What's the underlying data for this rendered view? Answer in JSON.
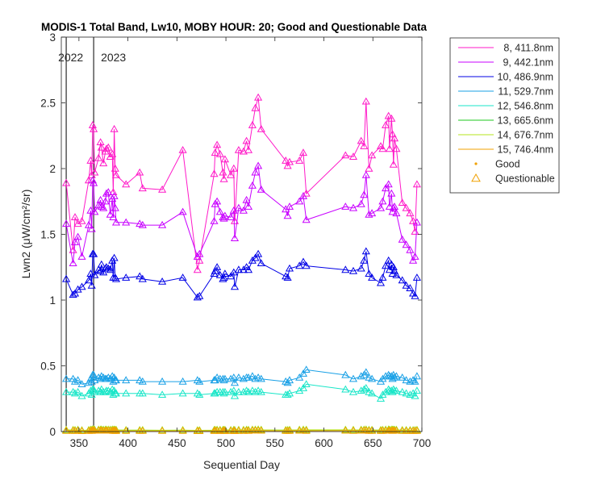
{
  "chart_data": {
    "type": "line",
    "title": "MODIS-1 Total Band, Lw10, MOBY HOUR: 20;  Good and Questionable Data",
    "xlabel": "Sequential Day",
    "ylabel": "Lwn2 (μW/cm²/sr)",
    "xlim": [
      332,
      700
    ],
    "ylim": [
      0,
      3
    ],
    "xticks": [
      350,
      400,
      450,
      500,
      550,
      600,
      650,
      700
    ],
    "yticks": [
      0,
      0.5,
      1,
      1.5,
      2,
      2.5,
      3
    ],
    "grid": false,
    "legend_position": "outside-top-right",
    "year_markers": [
      {
        "x": 337,
        "label": "2022"
      },
      {
        "x": 365,
        "label": "2023"
      }
    ],
    "x": [
      337,
      344,
      346,
      349,
      353,
      360,
      362,
      363,
      364,
      365,
      366,
      370,
      372,
      373,
      375,
      377,
      378,
      380,
      382,
      384,
      385,
      386,
      387,
      388,
      398,
      412,
      415,
      435,
      456,
      471,
      473,
      488,
      489,
      491,
      494,
      497,
      498,
      499,
      505,
      508,
      509,
      513,
      518,
      521,
      523,
      527,
      530,
      533,
      536,
      561,
      563,
      565,
      575,
      579,
      582,
      622,
      630,
      638,
      641,
      643,
      646,
      649,
      658,
      660,
      663,
      666,
      667,
      669,
      670,
      671,
      672,
      674,
      680,
      684,
      688,
      691,
      693,
      695
    ],
    "series": [
      {
        "name": "8, 411.8nm",
        "color": "#ff19c8",
        "values": [
          1.89,
          1.38,
          1.63,
          1.58,
          1.6,
          1.91,
          2.06,
          1.95,
          2.33,
          2.3,
          1.97,
          2.08,
          2.2,
          2.16,
          2.04,
          2.13,
          2.15,
          2.16,
          2.09,
          2.11,
          1.82,
          2.3,
          2.0,
          1.95,
          1.88,
          1.97,
          1.85,
          1.84,
          2.14,
          1.23,
          1.3,
          1.96,
          2.12,
          2.18,
          2.11,
          1.97,
          1.92,
          2.07,
          1.95,
          2.0,
          1.6,
          2.14,
          2.13,
          2.21,
          2.14,
          2.33,
          2.46,
          2.54,
          2.3,
          2.06,
          2.02,
          2.05,
          2.06,
          2.12,
          1.81,
          2.1,
          2.09,
          2.21,
          2.17,
          2.51,
          2.0,
          2.1,
          2.17,
          2.15,
          2.33,
          2.4,
          2.15,
          2.38,
          2.26,
          2.03,
          2.23,
          2.15,
          1.74,
          1.7,
          1.66,
          1.6,
          1.52,
          1.88
        ]
      },
      {
        "name": "9, 442.1nm",
        "color": "#c800ff",
        "values": [
          1.58,
          1.28,
          1.44,
          1.48,
          1.33,
          1.57,
          1.68,
          1.54,
          1.91,
          1.89,
          1.67,
          1.72,
          1.76,
          1.71,
          1.7,
          1.75,
          1.81,
          1.82,
          1.65,
          1.77,
          1.63,
          1.79,
          1.7,
          1.59,
          1.59,
          1.58,
          1.57,
          1.57,
          1.67,
          1.33,
          1.35,
          1.6,
          1.73,
          1.75,
          1.67,
          1.63,
          1.62,
          1.64,
          1.63,
          1.68,
          1.47,
          1.7,
          1.68,
          1.76,
          1.71,
          1.87,
          1.97,
          2.02,
          1.84,
          1.69,
          1.64,
          1.71,
          1.75,
          1.79,
          1.61,
          1.71,
          1.7,
          1.73,
          1.8,
          1.95,
          1.65,
          1.66,
          1.7,
          1.75,
          1.85,
          1.88,
          1.71,
          1.81,
          1.67,
          1.7,
          1.71,
          1.66,
          1.46,
          1.42,
          1.38,
          1.3,
          1.33,
          1.59
        ]
      },
      {
        "name": "10, 486.9nm",
        "color": "#0000e6",
        "values": [
          1.16,
          1.04,
          1.05,
          1.08,
          1.1,
          1.15,
          1.2,
          1.11,
          1.35,
          1.35,
          1.19,
          1.23,
          1.22,
          1.27,
          1.21,
          1.24,
          1.25,
          1.24,
          1.23,
          1.3,
          1.17,
          1.32,
          1.17,
          1.16,
          1.17,
          1.18,
          1.16,
          1.14,
          1.17,
          1.02,
          1.03,
          1.2,
          1.22,
          1.25,
          1.19,
          1.16,
          1.17,
          1.2,
          1.18,
          1.21,
          1.1,
          1.23,
          1.23,
          1.25,
          1.23,
          1.3,
          1.32,
          1.35,
          1.28,
          1.18,
          1.17,
          1.24,
          1.26,
          1.29,
          1.26,
          1.23,
          1.22,
          1.24,
          1.3,
          1.37,
          1.2,
          1.17,
          1.13,
          1.17,
          1.26,
          1.3,
          1.23,
          1.27,
          1.2,
          1.25,
          1.22,
          1.19,
          1.15,
          1.11,
          1.09,
          1.05,
          1.03,
          1.17
        ]
      },
      {
        "name": "11, 529.7nm",
        "color": "#19a0e6",
        "values": [
          0.4,
          0.4,
          0.38,
          0.39,
          0.36,
          0.37,
          0.4,
          0.38,
          0.43,
          0.43,
          0.39,
          0.41,
          0.4,
          0.42,
          0.41,
          0.4,
          0.4,
          0.41,
          0.4,
          0.42,
          0.38,
          0.41,
          0.39,
          0.39,
          0.39,
          0.39,
          0.38,
          0.38,
          0.38,
          0.39,
          0.38,
          0.39,
          0.39,
          0.41,
          0.4,
          0.4,
          0.39,
          0.4,
          0.4,
          0.41,
          0.37,
          0.41,
          0.4,
          0.41,
          0.41,
          0.42,
          0.4,
          0.41,
          0.4,
          0.38,
          0.37,
          0.39,
          0.41,
          0.44,
          0.47,
          0.43,
          0.4,
          0.42,
          0.43,
          0.45,
          0.41,
          0.4,
          0.38,
          0.4,
          0.42,
          0.43,
          0.42,
          0.42,
          0.4,
          0.43,
          0.41,
          0.42,
          0.41,
          0.39,
          0.38,
          0.39,
          0.38,
          0.42
        ]
      },
      {
        "name": "12, 546.8nm",
        "color": "#19e6c8",
        "values": [
          0.3,
          0.3,
          0.29,
          0.3,
          0.27,
          0.29,
          0.31,
          0.28,
          0.32,
          0.32,
          0.3,
          0.31,
          0.3,
          0.32,
          0.3,
          0.3,
          0.31,
          0.31,
          0.3,
          0.32,
          0.28,
          0.31,
          0.29,
          0.29,
          0.29,
          0.29,
          0.29,
          0.28,
          0.29,
          0.29,
          0.28,
          0.29,
          0.29,
          0.3,
          0.3,
          0.3,
          0.29,
          0.3,
          0.3,
          0.31,
          0.27,
          0.3,
          0.3,
          0.31,
          0.3,
          0.31,
          0.3,
          0.31,
          0.3,
          0.28,
          0.28,
          0.29,
          0.31,
          0.33,
          0.36,
          0.32,
          0.3,
          0.31,
          0.32,
          0.33,
          0.3,
          0.29,
          0.25,
          0.28,
          0.3,
          0.32,
          0.31,
          0.31,
          0.3,
          0.32,
          0.31,
          0.31,
          0.3,
          0.29,
          0.28,
          0.29,
          0.27,
          0.31
        ]
      },
      {
        "name": "13, 665.6nm",
        "color": "#1ec81e",
        "values": [
          0.01,
          0.01,
          0.01,
          0.012,
          0.008,
          0.01,
          0.012,
          0.01,
          0.015,
          0.015,
          0.012,
          0.013,
          0.012,
          0.014,
          0.012,
          0.012,
          0.013,
          0.013,
          0.012,
          0.014,
          0.01,
          0.013,
          0.011,
          0.011,
          0.01,
          0.01,
          0.01,
          0.009,
          0.01,
          0.008,
          0.008,
          0.01,
          0.011,
          0.012,
          0.011,
          0.011,
          0.01,
          0.011,
          0.01,
          0.011,
          0.009,
          0.011,
          0.011,
          0.012,
          0.011,
          0.013,
          0.013,
          0.014,
          0.012,
          0.01,
          0.01,
          0.011,
          0.012,
          0.013,
          0.012,
          0.012,
          0.011,
          0.012,
          0.013,
          0.014,
          0.011,
          0.011,
          0.01,
          0.011,
          0.013,
          0.014,
          0.012,
          0.013,
          0.012,
          0.012,
          0.012,
          0.012,
          0.01,
          0.01,
          0.009,
          0.009,
          0.009,
          0.011
        ]
      },
      {
        "name": "14, 676.7nm",
        "color": "#b4e61e",
        "values": [
          0.012,
          0.012,
          0.011,
          0.013,
          0.009,
          0.011,
          0.013,
          0.011,
          0.016,
          0.016,
          0.013,
          0.014,
          0.013,
          0.015,
          0.013,
          0.013,
          0.014,
          0.014,
          0.013,
          0.015,
          0.011,
          0.014,
          0.012,
          0.012,
          0.011,
          0.011,
          0.011,
          0.01,
          0.011,
          0.009,
          0.009,
          0.011,
          0.012,
          0.013,
          0.012,
          0.012,
          0.011,
          0.012,
          0.011,
          0.012,
          0.01,
          0.012,
          0.012,
          0.013,
          0.012,
          0.014,
          0.014,
          0.015,
          0.013,
          0.011,
          0.011,
          0.012,
          0.013,
          0.014,
          0.013,
          0.013,
          0.012,
          0.013,
          0.014,
          0.015,
          0.012,
          0.012,
          0.011,
          0.012,
          0.014,
          0.015,
          0.013,
          0.014,
          0.013,
          0.013,
          0.013,
          0.013,
          0.011,
          0.011,
          0.01,
          0.01,
          0.01,
          0.012
        ]
      },
      {
        "name": "15, 746.4nm",
        "color": "#f0a000",
        "values": [
          0.006,
          0.006,
          0.005,
          0.007,
          0.004,
          0.005,
          0.007,
          0.005,
          0.009,
          0.009,
          0.007,
          0.008,
          0.007,
          0.008,
          0.007,
          0.007,
          0.008,
          0.008,
          0.007,
          0.008,
          0.005,
          0.008,
          0.006,
          0.006,
          0.005,
          0.005,
          0.005,
          0.005,
          0.005,
          0.004,
          0.004,
          0.005,
          0.006,
          0.007,
          0.006,
          0.006,
          0.005,
          0.006,
          0.005,
          0.006,
          0.004,
          0.006,
          0.006,
          0.007,
          0.006,
          0.008,
          0.008,
          0.008,
          0.007,
          0.005,
          0.005,
          0.006,
          0.007,
          0.007,
          0.006,
          0.007,
          0.006,
          0.007,
          0.008,
          0.008,
          0.006,
          0.006,
          0.005,
          0.006,
          0.007,
          0.008,
          0.007,
          0.007,
          0.006,
          0.007,
          0.007,
          0.007,
          0.005,
          0.005,
          0.005,
          0.005,
          0.005,
          0.006
        ]
      }
    ],
    "legend": {
      "good_label": "Good",
      "questionable_label": "Questionable",
      "good_color": "#f0a000",
      "questionable_color": "#f0a000"
    }
  }
}
